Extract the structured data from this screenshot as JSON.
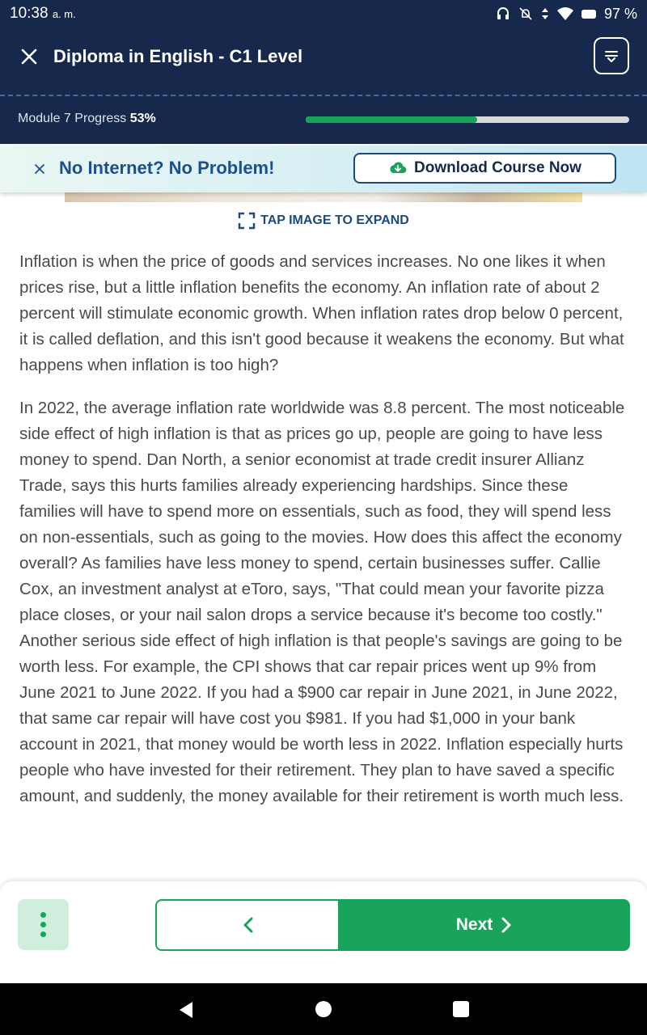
{
  "status_bar": {
    "time": "10:38",
    "time_suffix": "a. m.",
    "battery": "97 %",
    "icons": [
      "headset-icon",
      "bell-off-icon",
      "data-arrows-icon",
      "wifi-icon",
      "battery-icon"
    ]
  },
  "header": {
    "title": "Diploma in English - C1 Level",
    "progress_label": "Module 7 Progress",
    "progress_value": "53%",
    "progress_fraction": 0.53,
    "colors": {
      "background": "#16294d",
      "progress": "#1aa35a"
    }
  },
  "banner": {
    "text": "No Internet? No Problem!",
    "button_label": "Download Course Now"
  },
  "image": {
    "hint": "TAP IMAGE TO EXPAND"
  },
  "article": {
    "paragraphs": [
      "Inflation is when the price of goods and services increases. No one likes it when prices rise, but a little inflation benefits the economy. An inflation rate of about 2 percent will stimulate economic growth. When inflation rates drop below 0 percent, it is called deflation, and this isn't good because it weakens the economy. But what happens when inflation is too high?",
      "In 2022, the average inflation rate worldwide was 8.8 percent. The most noticeable side effect of high inflation is that as prices go up, people are going to have less money to spend. Dan North, a senior economist at trade credit insurer Allianz Trade, says this hurts families already experiencing hardships. Since these families will have to spend more on essentials, such as food, they will spend less on non-essentials, such as going to the movies. How does this affect the economy overall? As families have less money to spend, certain businesses suffer. Callie Cox, an investment analyst at eToro, says, \"That could mean your favorite pizza place closes, or your nail salon drops a service because it's become too costly.\"",
      "Another serious side effect of high inflation is that people's savings are going to be worth less. For example, the CPI shows that car repair prices went up 9% from June 2021 to June 2022. If you had a $900 car repair in June 2021, in June 2022, that same car repair will have cost you $981. If you had $1,000 in your bank account in 2021, that money would be worth less in 2022. Inflation especially hurts people who have invested for their retirement. They plan to have saved a specific amount, and suddenly, the money available for their retirement is worth much less."
    ]
  },
  "bottom_bar": {
    "next_label": "Next",
    "accent": "#1aa35a"
  }
}
